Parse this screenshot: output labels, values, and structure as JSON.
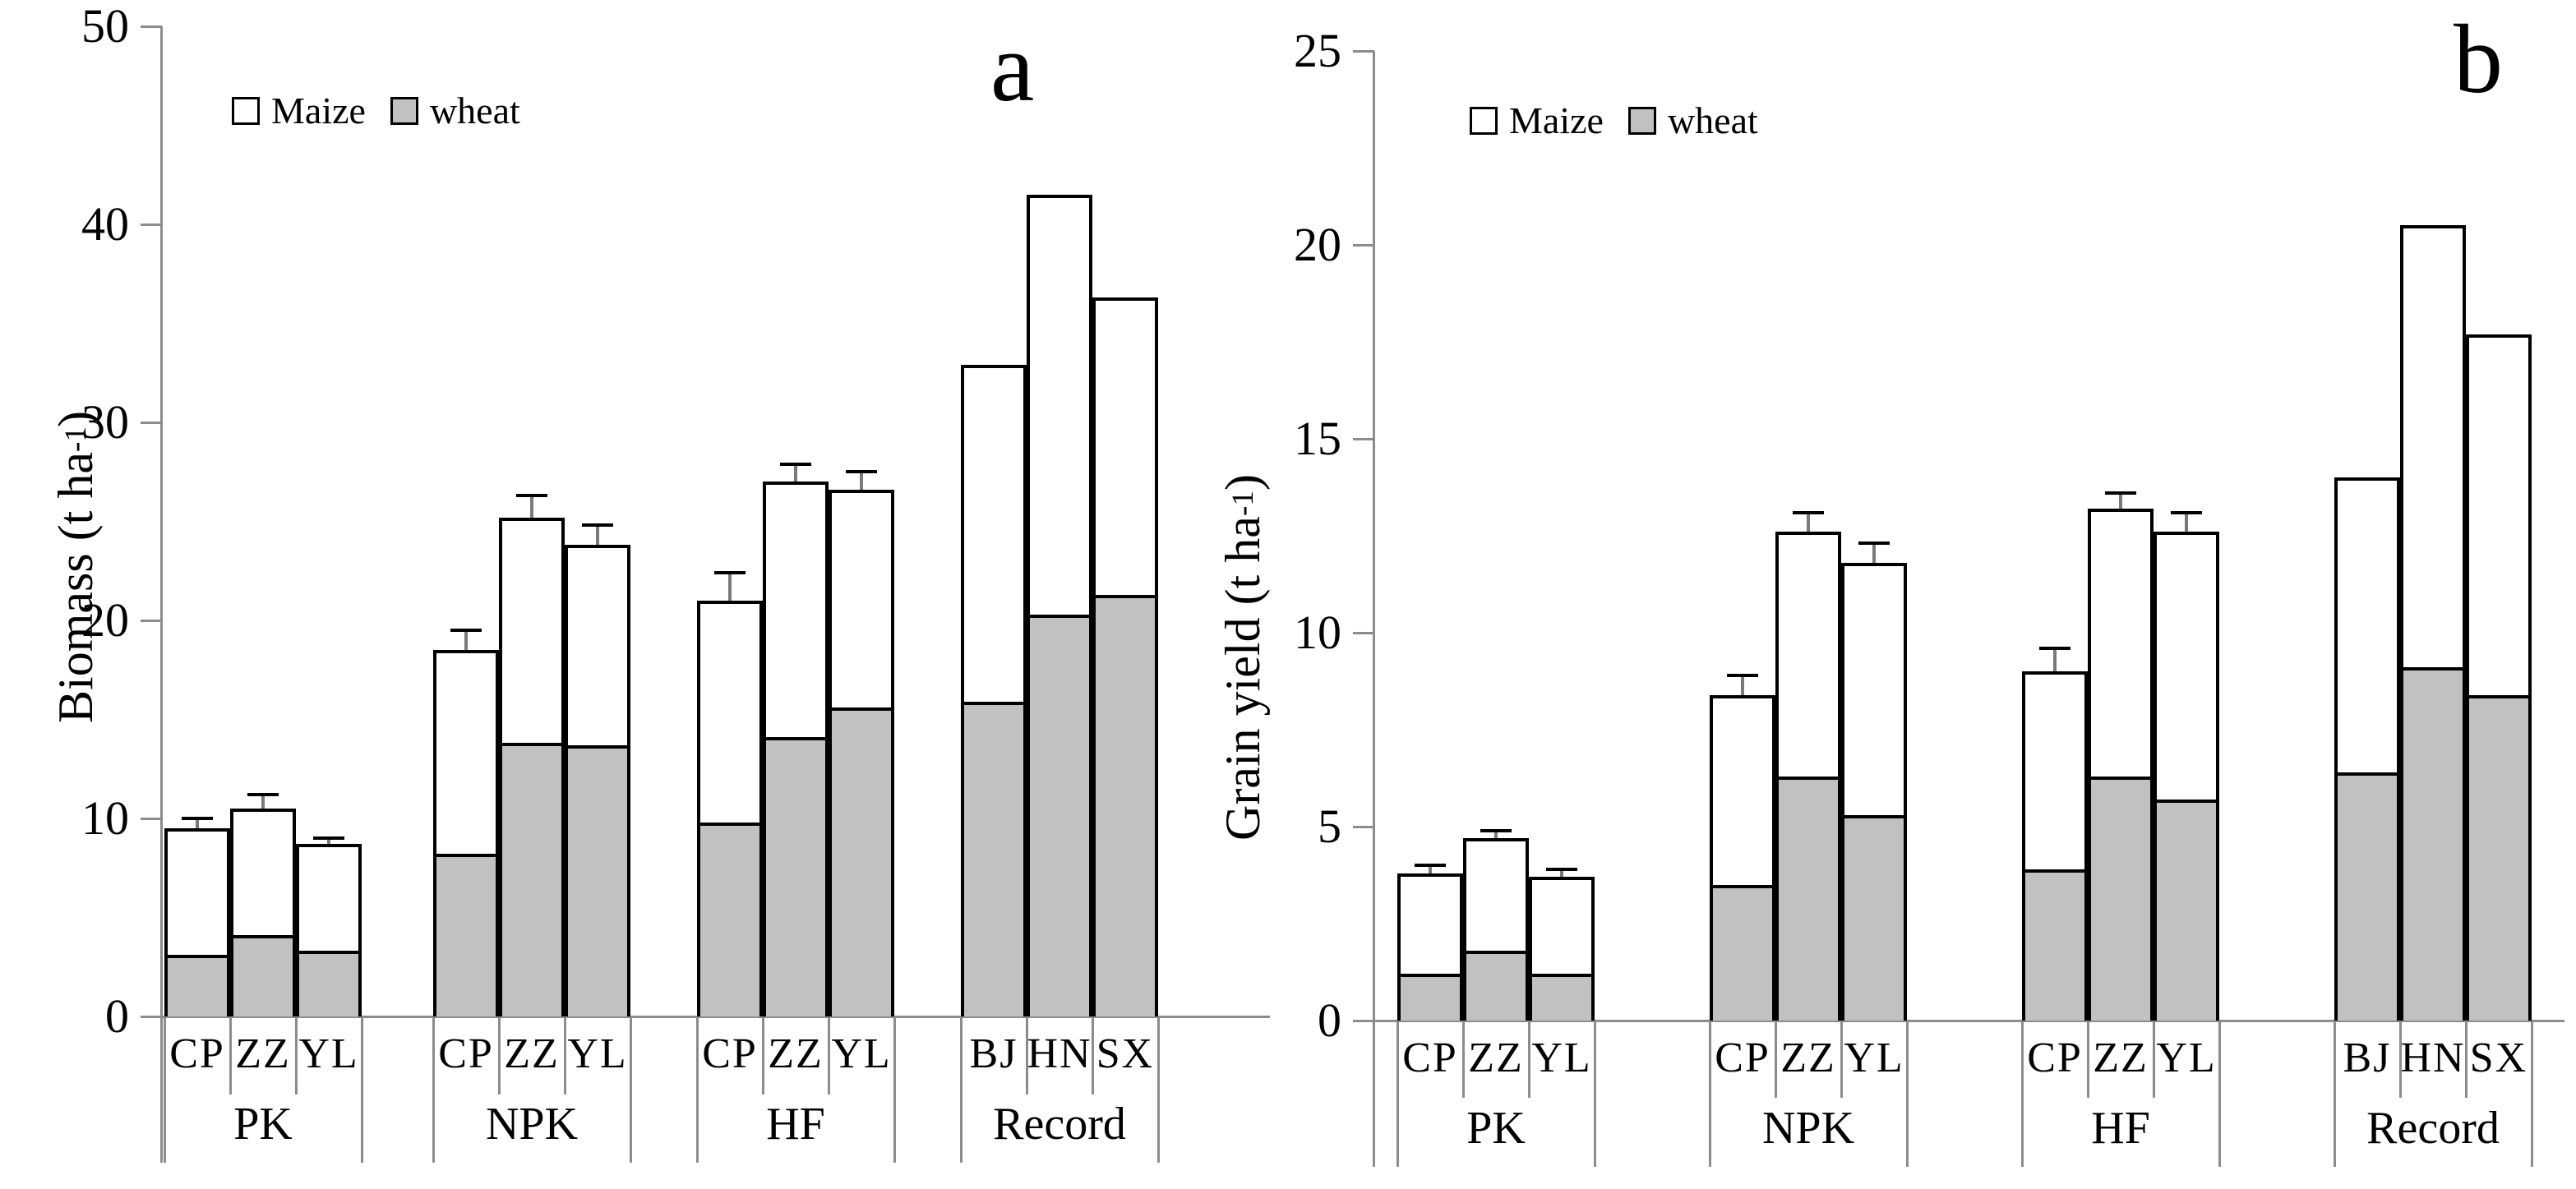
{
  "colors": {
    "wheat_fill": "#c1c1c1",
    "maize_fill": "#ffffff",
    "bar_border": "#000000",
    "axis_line": "#8c8c8c",
    "error_stem": "#7a7a7a",
    "error_cap": "#000000",
    "text": "#000000"
  },
  "chart_data": [
    {
      "type": "bar",
      "subtype": "stacked-with-error-bars",
      "panel_letter": "a",
      "ylabel_main": "Biomass (t ha",
      "ylabel_sup": "-1",
      "ylabel_close": ")",
      "ylim": [
        0,
        50
      ],
      "yticks": [
        0,
        10,
        20,
        30,
        40,
        50
      ],
      "grid": false,
      "legend_position": "upper-left-inside",
      "legend": [
        {
          "label": "Maize",
          "color": "#ffffff"
        },
        {
          "label": "wheat",
          "color": "#c1c1c1"
        }
      ],
      "groups": [
        {
          "label": "PK",
          "bars": [
            {
              "label": "CP",
              "wheat": 3.1,
              "maize": 6.4,
              "total": 9.5,
              "err": 0.5
            },
            {
              "label": "ZZ",
              "wheat": 4.1,
              "maize": 6.4,
              "total": 10.5,
              "err": 0.7
            },
            {
              "label": "YL",
              "wheat": 3.3,
              "maize": 5.4,
              "total": 8.7,
              "err": 0.3
            }
          ]
        },
        {
          "label": "NPK",
          "bars": [
            {
              "label": "CP",
              "wheat": 8.2,
              "maize": 10.3,
              "total": 18.5,
              "err": 1.0
            },
            {
              "label": "ZZ",
              "wheat": 13.8,
              "maize": 11.4,
              "total": 25.2,
              "err": 1.1
            },
            {
              "label": "YL",
              "wheat": 13.7,
              "maize": 10.1,
              "total": 23.8,
              "err": 1.0
            }
          ]
        },
        {
          "label": "HF",
          "bars": [
            {
              "label": "CP",
              "wheat": 9.8,
              "maize": 11.2,
              "total": 21.0,
              "err": 1.4
            },
            {
              "label": "ZZ",
              "wheat": 14.1,
              "maize": 12.9,
              "total": 27.0,
              "err": 0.9
            },
            {
              "label": "YL",
              "wheat": 15.6,
              "maize": 11.0,
              "total": 26.6,
              "err": 0.9
            }
          ]
        },
        {
          "label": "Record",
          "bars": [
            {
              "label": "BJ",
              "wheat": 15.9,
              "maize": 17.0,
              "total": 32.9,
              "err": null
            },
            {
              "label": "HN",
              "wheat": 20.3,
              "maize": 21.2,
              "total": 41.5,
              "err": null
            },
            {
              "label": "SX",
              "wheat": 21.3,
              "maize": 15.0,
              "total": 36.3,
              "err": null
            }
          ]
        }
      ]
    },
    {
      "type": "bar",
      "subtype": "stacked-with-error-bars",
      "panel_letter": "b",
      "ylabel_main": "Grain yield (t ha",
      "ylabel_sup": "-1",
      "ylabel_close": ")",
      "ylim": [
        0,
        25
      ],
      "yticks": [
        0,
        5,
        10,
        15,
        20,
        25
      ],
      "grid": false,
      "legend_position": "upper-left-inside",
      "legend": [
        {
          "label": "Maize",
          "color": "#ffffff"
        },
        {
          "label": "wheat",
          "color": "#c1c1c1"
        }
      ],
      "groups": [
        {
          "label": "PK",
          "bars": [
            {
              "label": "CP",
              "wheat": 1.2,
              "maize": 2.6,
              "total": 3.8,
              "err": 0.2
            },
            {
              "label": "ZZ",
              "wheat": 1.8,
              "maize": 2.9,
              "total": 4.7,
              "err": 0.2
            },
            {
              "label": "YL",
              "wheat": 1.2,
              "maize": 2.5,
              "total": 3.7,
              "err": 0.2
            }
          ]
        },
        {
          "label": "NPK",
          "bars": [
            {
              "label": "CP",
              "wheat": 3.5,
              "maize": 4.9,
              "total": 8.4,
              "err": 0.5
            },
            {
              "label": "ZZ",
              "wheat": 6.3,
              "maize": 6.3,
              "total": 12.6,
              "err": 0.5
            },
            {
              "label": "YL",
              "wheat": 5.3,
              "maize": 6.5,
              "total": 11.8,
              "err": 0.5
            }
          ]
        },
        {
          "label": "HF",
          "bars": [
            {
              "label": "CP",
              "wheat": 3.9,
              "maize": 5.1,
              "total": 9.0,
              "err": 0.6
            },
            {
              "label": "ZZ",
              "wheat": 6.3,
              "maize": 6.9,
              "total": 13.2,
              "err": 0.4
            },
            {
              "label": "YL",
              "wheat": 5.7,
              "maize": 6.9,
              "total": 12.6,
              "err": 0.5
            }
          ]
        },
        {
          "label": "Record",
          "bars": [
            {
              "label": "BJ",
              "wheat": 6.4,
              "maize": 7.6,
              "total": 14.0,
              "err": null
            },
            {
              "label": "HN",
              "wheat": 9.1,
              "maize": 11.4,
              "total": 20.5,
              "err": null
            },
            {
              "label": "SX",
              "wheat": 8.4,
              "maize": 9.3,
              "total": 17.7,
              "err": null
            }
          ]
        }
      ]
    }
  ]
}
